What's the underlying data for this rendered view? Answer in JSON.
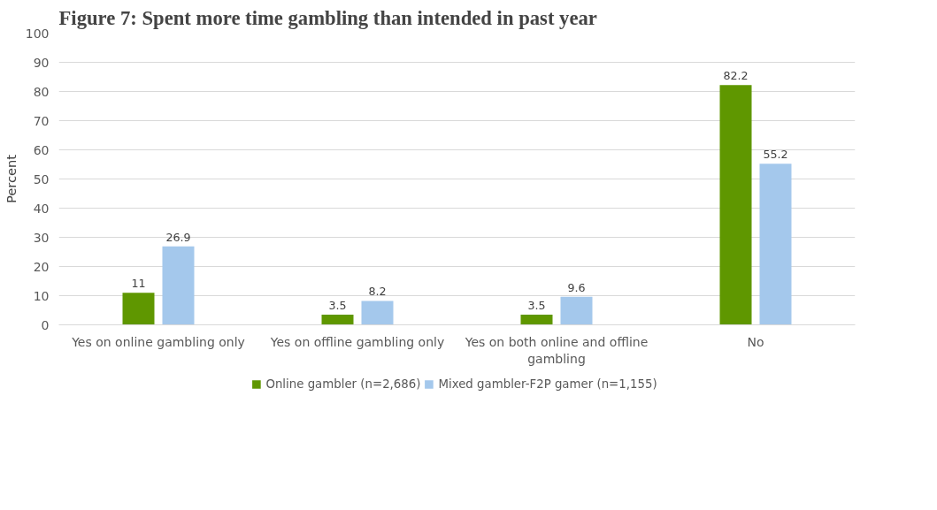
{
  "chart_data": {
    "type": "bar",
    "title": "Figure 7: Spent more time gambling than intended in past year",
    "ylabel": "Percent",
    "categories": [
      "Yes on online gambling only",
      "Yes on offline gambling only",
      "Yes on both online and offline gambling",
      "No"
    ],
    "series": [
      {
        "name": "Online gambler (n=2,686)",
        "color": "#5f9700",
        "values": [
          11,
          3.5,
          3.5,
          82.2
        ]
      },
      {
        "name": "Mixed gambler-F2P gamer (n=1,155)",
        "color": "#a4c8ec",
        "values": [
          26.9,
          8.2,
          9.6,
          55.2
        ]
      }
    ],
    "ylim": [
      0,
      100
    ],
    "yticks": [
      0,
      10,
      20,
      30,
      40,
      50,
      60,
      70,
      80,
      90,
      100
    ],
    "grid": "y",
    "legend": "bottom",
    "data_labels": true
  }
}
